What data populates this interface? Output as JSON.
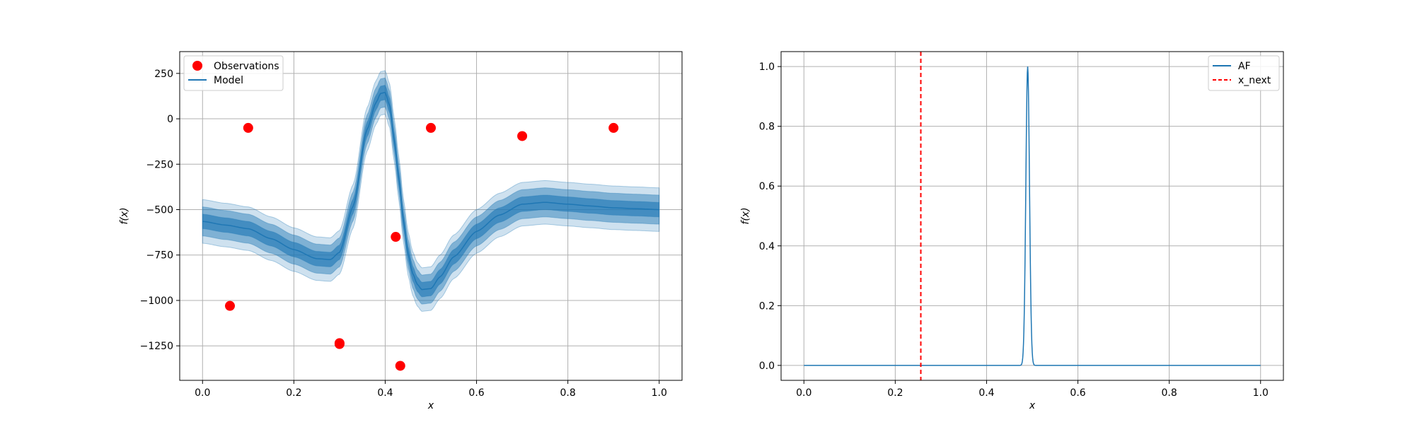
{
  "chart_data": [
    {
      "type": "line",
      "title": "",
      "xlabel": "x",
      "ylabel": "f(x)",
      "xlim": [
        -0.05,
        1.05
      ],
      "ylim": [
        -1440,
        370
      ],
      "xticks": [
        0.0,
        0.2,
        0.4,
        0.6,
        0.8,
        1.0
      ],
      "xtick_labels": [
        "0.0",
        "0.2",
        "0.4",
        "0.6",
        "0.8",
        "1.0"
      ],
      "yticks": [
        250,
        0,
        -250,
        -500,
        -750,
        -1000,
        -1250
      ],
      "ytick_labels": [
        "250",
        "0",
        "−250",
        "−500",
        "−750",
        "−1000",
        "−1250"
      ],
      "grid": true,
      "legend_position": "top-left",
      "legend": [
        {
          "label": "Observations",
          "marker": "circle",
          "color": "#ff0000"
        },
        {
          "label": "Model",
          "marker": "line",
          "color": "#1f77b4"
        }
      ],
      "observations": {
        "name": "Observations",
        "x": [
          0.06,
          0.1,
          0.3,
          0.3,
          0.423,
          0.433,
          0.5,
          0.7,
          0.9
        ],
        "y": [
          -1030,
          -50,
          -1235,
          -1240,
          -650,
          -1360,
          -50,
          -95,
          -50
        ],
        "color": "#ff0000"
      },
      "model": {
        "name": "Model",
        "x": [
          0.0,
          0.05,
          0.1,
          0.15,
          0.2,
          0.25,
          0.28,
          0.3,
          0.33,
          0.36,
          0.38,
          0.39,
          0.4,
          0.41,
          0.42,
          0.43,
          0.44,
          0.45,
          0.46,
          0.47,
          0.48,
          0.5,
          0.52,
          0.55,
          0.6,
          0.65,
          0.7,
          0.75,
          0.8,
          0.85,
          0.9,
          0.95,
          1.0
        ],
        "mean": [
          -565,
          -585,
          -605,
          -660,
          -720,
          -770,
          -775,
          -735,
          -480,
          -60,
          90,
          140,
          145,
          70,
          -120,
          -330,
          -560,
          -740,
          -850,
          -910,
          -940,
          -935,
          -870,
          -760,
          -620,
          -530,
          -470,
          -460,
          -470,
          -480,
          -490,
          -495,
          -500
        ],
        "band_half_widths": [
          40,
          80,
          120
        ],
        "color": "#1f77b4"
      }
    },
    {
      "type": "line",
      "title": "",
      "xlabel": "x",
      "ylabel": "f(x)",
      "xlim": [
        -0.05,
        1.05
      ],
      "ylim": [
        -0.05,
        1.05
      ],
      "xticks": [
        0.0,
        0.2,
        0.4,
        0.6,
        0.8,
        1.0
      ],
      "xtick_labels": [
        "0.0",
        "0.2",
        "0.4",
        "0.6",
        "0.8",
        "1.0"
      ],
      "yticks": [
        0.0,
        0.2,
        0.4,
        0.6,
        0.8,
        1.0
      ],
      "ytick_labels": [
        "0.0",
        "0.2",
        "0.4",
        "0.6",
        "0.8",
        "1.0"
      ],
      "grid": true,
      "legend_position": "top-right",
      "legend": [
        {
          "label": "AF",
          "marker": "line",
          "color": "#1f77b4"
        },
        {
          "label": "x_next",
          "marker": "dashed-line",
          "color": "#ff0000"
        }
      ],
      "af": {
        "name": "AF",
        "peak_x": 0.49,
        "peak_y": 1.0,
        "peak_width": 0.004,
        "color": "#1f77b4"
      },
      "x_next": {
        "name": "x_next",
        "x": 0.256,
        "color": "#ff0000"
      }
    }
  ]
}
